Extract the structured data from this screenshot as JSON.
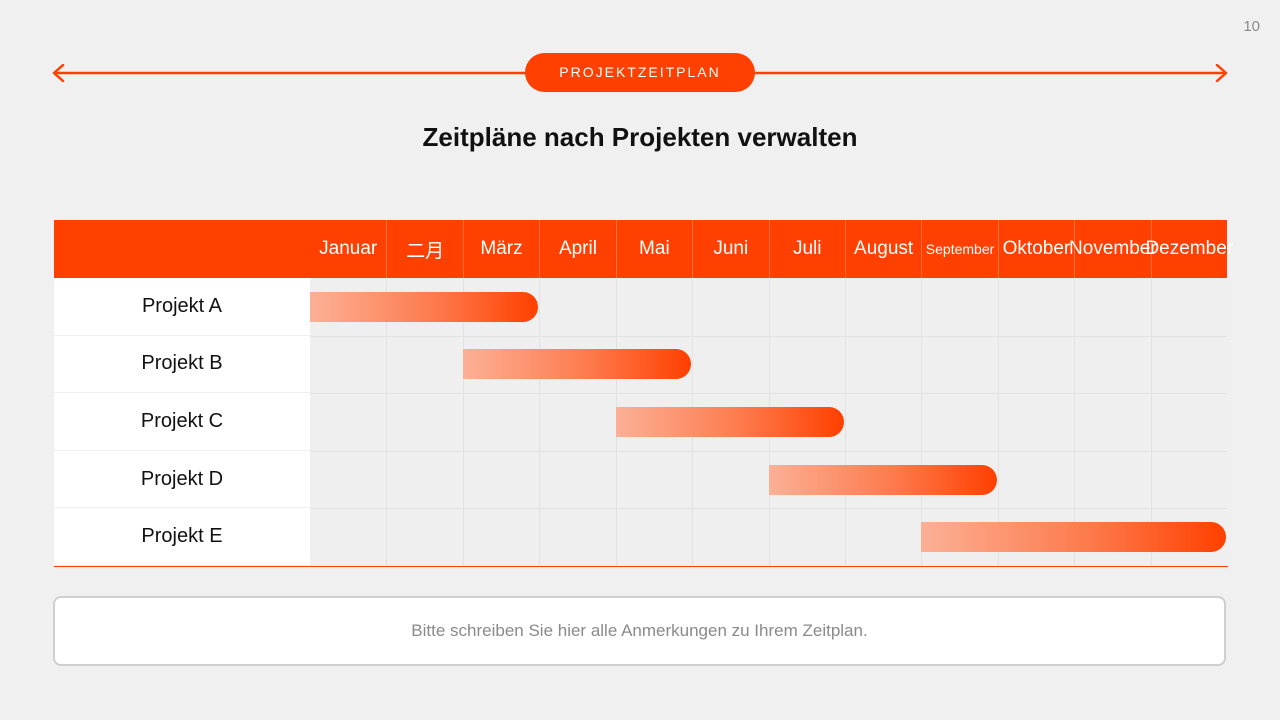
{
  "page_number": "10",
  "header": {
    "pill_label": "PROJEKTZEITPLAN",
    "accent_color": "#ff4000"
  },
  "title": "Zeitpläne nach Projekten verwalten",
  "chart_data": {
    "type": "gantt",
    "months": [
      "Januar",
      "二月",
      "März",
      "April",
      "Mai",
      "Juni",
      "Juli",
      "August",
      "September",
      "Oktober",
      "November",
      "Dezember"
    ],
    "tasks": [
      {
        "name": "Projekt A",
        "start_month": 1,
        "end_month": 3
      },
      {
        "name": "Projekt B",
        "start_month": 3,
        "end_month": 5
      },
      {
        "name": "Projekt C",
        "start_month": 5,
        "end_month": 7
      },
      {
        "name": "Projekt D",
        "start_month": 7,
        "end_month": 9
      },
      {
        "name": "Projekt E",
        "start_month": 9,
        "end_month": 12
      }
    ]
  },
  "notes": {
    "placeholder": "Bitte schreiben Sie hier alle Anmerkungen zu Ihrem Zeitplan."
  }
}
